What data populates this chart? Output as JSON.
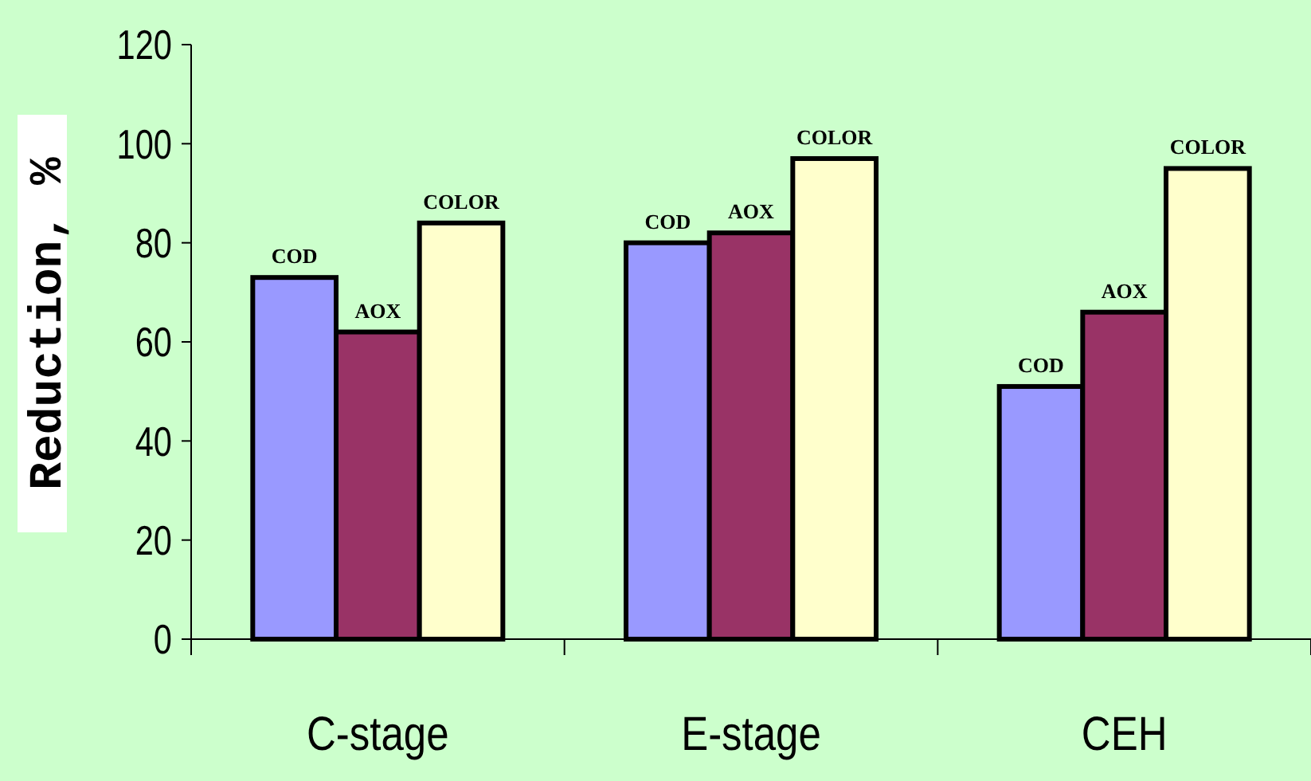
{
  "chart_data": {
    "type": "bar",
    "ylabel": "Reduction, %",
    "categories": [
      "C-stage",
      "E-stage",
      "CEH"
    ],
    "series": [
      {
        "name": "COD",
        "color": "#9999ff",
        "values": [
          73,
          80,
          51
        ]
      },
      {
        "name": "AOX",
        "color": "#993366",
        "values": [
          62,
          82,
          66
        ]
      },
      {
        "name": "COLOR",
        "color": "#ffffcc",
        "values": [
          84,
          97,
          95
        ]
      }
    ],
    "ylim": [
      0,
      120
    ],
    "yticks": [
      0,
      20,
      40,
      60,
      80,
      100,
      120
    ],
    "grid": false
  }
}
